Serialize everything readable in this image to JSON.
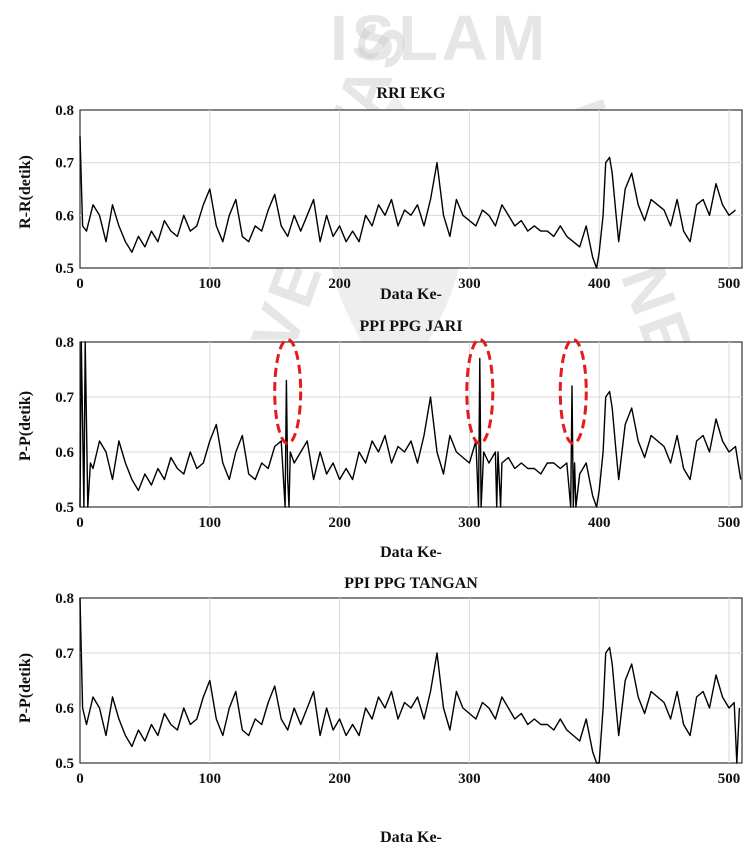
{
  "colors": {
    "series": "#000000",
    "grid": "#d9d9d9",
    "highlight": "#e41a1c",
    "watermark": "#c8c8c8"
  },
  "watermark": {
    "text_top": "ISLAM",
    "text_left": "UNIVERSITAS",
    "text_right": "INDONESIA",
    "emblem": "university-seal-icon"
  },
  "chart_data": [
    {
      "type": "line",
      "title": "RRI EKG",
      "xlabel": "Data Ke-",
      "ylabel": "R-R(detik)",
      "xlim": [
        0,
        510
      ],
      "ylim": [
        0.5,
        0.8
      ],
      "xticks": [
        0,
        100,
        200,
        300,
        400,
        500
      ],
      "yticks": [
        0.5,
        0.6,
        0.7,
        0.8
      ],
      "grid": true,
      "series": [
        {
          "x": [
            0,
            2,
            5,
            10,
            15,
            20,
            25,
            30,
            35,
            40,
            45,
            50,
            55,
            60,
            65,
            70,
            75,
            80,
            85,
            90,
            95,
            100,
            105,
            110,
            115,
            120,
            125,
            130,
            135,
            140,
            145,
            150,
            155,
            160,
            165,
            170,
            175,
            180,
            185,
            190,
            195,
            200,
            205,
            210,
            215,
            220,
            225,
            230,
            235,
            240,
            245,
            250,
            255,
            260,
            265,
            270,
            275,
            280,
            285,
            290,
            295,
            300,
            305,
            310,
            315,
            320,
            325,
            330,
            335,
            340,
            345,
            350,
            355,
            360,
            365,
            370,
            375,
            380,
            385,
            390,
            395,
            398,
            400,
            403,
            405,
            408,
            410,
            413,
            415,
            420,
            425,
            430,
            435,
            440,
            445,
            450,
            455,
            460,
            465,
            470,
            475,
            480,
            485,
            490,
            495,
            500,
            505
          ],
          "y": [
            0.75,
            0.58,
            0.57,
            0.62,
            0.6,
            0.55,
            0.62,
            0.58,
            0.55,
            0.53,
            0.56,
            0.54,
            0.57,
            0.55,
            0.59,
            0.57,
            0.56,
            0.6,
            0.57,
            0.58,
            0.62,
            0.65,
            0.58,
            0.55,
            0.6,
            0.63,
            0.56,
            0.55,
            0.58,
            0.57,
            0.61,
            0.64,
            0.58,
            0.56,
            0.6,
            0.57,
            0.6,
            0.63,
            0.55,
            0.6,
            0.56,
            0.58,
            0.55,
            0.57,
            0.55,
            0.6,
            0.58,
            0.62,
            0.6,
            0.63,
            0.58,
            0.61,
            0.6,
            0.62,
            0.58,
            0.63,
            0.7,
            0.6,
            0.56,
            0.63,
            0.6,
            0.59,
            0.58,
            0.61,
            0.6,
            0.58,
            0.62,
            0.6,
            0.58,
            0.59,
            0.57,
            0.58,
            0.57,
            0.57,
            0.56,
            0.58,
            0.56,
            0.55,
            0.54,
            0.58,
            0.52,
            0.5,
            0.53,
            0.6,
            0.7,
            0.71,
            0.68,
            0.6,
            0.55,
            0.65,
            0.68,
            0.62,
            0.59,
            0.63,
            0.62,
            0.61,
            0.58,
            0.63,
            0.57,
            0.55,
            0.62,
            0.63,
            0.6,
            0.66,
            0.62,
            0.6,
            0.61
          ]
        }
      ]
    },
    {
      "type": "line",
      "title": "PPI PPG JARI",
      "xlabel": "Data Ke-",
      "ylabel": "P-P(detik)",
      "xlim": [
        0,
        510
      ],
      "ylim": [
        0.5,
        0.8
      ],
      "xticks": [
        0,
        100,
        200,
        300,
        400,
        500
      ],
      "yticks": [
        0.5,
        0.6,
        0.7,
        0.8
      ],
      "grid": true,
      "highlight_x": [
        160,
        308,
        380
      ],
      "series": [
        {
          "x": [
            0,
            1,
            3,
            4,
            6,
            8,
            10,
            15,
            20,
            25,
            30,
            35,
            40,
            45,
            50,
            55,
            60,
            65,
            70,
            75,
            80,
            85,
            90,
            95,
            100,
            105,
            110,
            115,
            120,
            125,
            130,
            135,
            140,
            145,
            150,
            155,
            158,
            159,
            160,
            161,
            162,
            165,
            170,
            175,
            180,
            185,
            190,
            195,
            200,
            205,
            210,
            215,
            220,
            225,
            230,
            235,
            240,
            245,
            250,
            255,
            260,
            265,
            270,
            275,
            280,
            285,
            290,
            295,
            300,
            305,
            307,
            308,
            309,
            311,
            315,
            320,
            321,
            322,
            324,
            325,
            330,
            335,
            340,
            345,
            350,
            355,
            360,
            365,
            370,
            375,
            378,
            379,
            380,
            381,
            382,
            385,
            390,
            395,
            398,
            400,
            403,
            405,
            408,
            410,
            413,
            415,
            420,
            425,
            430,
            435,
            440,
            445,
            450,
            455,
            460,
            465,
            470,
            475,
            480,
            485,
            490,
            495,
            500,
            505,
            509
          ],
          "y": [
            0.5,
            0.8,
            0.5,
            0.8,
            0.5,
            0.58,
            0.57,
            0.62,
            0.6,
            0.55,
            0.62,
            0.58,
            0.55,
            0.53,
            0.56,
            0.54,
            0.57,
            0.55,
            0.59,
            0.57,
            0.56,
            0.6,
            0.57,
            0.58,
            0.62,
            0.65,
            0.58,
            0.55,
            0.6,
            0.63,
            0.56,
            0.55,
            0.58,
            0.57,
            0.61,
            0.62,
            0.5,
            0.73,
            0.55,
            0.5,
            0.6,
            0.58,
            0.6,
            0.62,
            0.55,
            0.6,
            0.56,
            0.58,
            0.55,
            0.57,
            0.55,
            0.6,
            0.58,
            0.62,
            0.6,
            0.63,
            0.58,
            0.61,
            0.6,
            0.62,
            0.58,
            0.63,
            0.7,
            0.6,
            0.56,
            0.63,
            0.6,
            0.59,
            0.58,
            0.62,
            0.5,
            0.77,
            0.5,
            0.6,
            0.58,
            0.6,
            0.5,
            0.6,
            0.5,
            0.58,
            0.59,
            0.57,
            0.58,
            0.57,
            0.57,
            0.56,
            0.58,
            0.58,
            0.57,
            0.58,
            0.5,
            0.72,
            0.5,
            0.58,
            0.5,
            0.56,
            0.58,
            0.52,
            0.5,
            0.53,
            0.6,
            0.7,
            0.71,
            0.68,
            0.6,
            0.55,
            0.65,
            0.68,
            0.62,
            0.59,
            0.63,
            0.62,
            0.61,
            0.58,
            0.63,
            0.57,
            0.55,
            0.62,
            0.63,
            0.6,
            0.66,
            0.62,
            0.6,
            0.61,
            0.55
          ]
        }
      ]
    },
    {
      "type": "line",
      "title": "PPI PPG TANGAN",
      "xlabel": "Data Ke-",
      "ylabel": "P-P(detik)",
      "xlim": [
        0,
        510
      ],
      "ylim": [
        0.5,
        0.8
      ],
      "xticks": [
        0,
        100,
        200,
        300,
        400,
        500
      ],
      "yticks": [
        0.5,
        0.6,
        0.7,
        0.8
      ],
      "grid": true,
      "series": [
        {
          "x": [
            0,
            2,
            5,
            10,
            15,
            20,
            25,
            30,
            35,
            40,
            45,
            50,
            55,
            60,
            65,
            70,
            75,
            80,
            85,
            90,
            95,
            100,
            105,
            110,
            115,
            120,
            125,
            130,
            135,
            140,
            145,
            150,
            155,
            160,
            165,
            170,
            175,
            180,
            185,
            190,
            195,
            200,
            205,
            210,
            215,
            220,
            225,
            230,
            235,
            240,
            245,
            250,
            255,
            260,
            265,
            270,
            275,
            280,
            285,
            290,
            295,
            300,
            305,
            310,
            315,
            320,
            325,
            330,
            335,
            340,
            345,
            350,
            355,
            360,
            365,
            370,
            375,
            380,
            385,
            390,
            395,
            398,
            400,
            403,
            405,
            408,
            410,
            413,
            415,
            420,
            425,
            430,
            435,
            440,
            445,
            450,
            455,
            460,
            465,
            470,
            475,
            480,
            485,
            490,
            495,
            500,
            504,
            506,
            508
          ],
          "y": [
            0.8,
            0.6,
            0.57,
            0.62,
            0.6,
            0.55,
            0.62,
            0.58,
            0.55,
            0.53,
            0.56,
            0.54,
            0.57,
            0.55,
            0.59,
            0.57,
            0.56,
            0.6,
            0.57,
            0.58,
            0.62,
            0.65,
            0.58,
            0.55,
            0.6,
            0.63,
            0.56,
            0.55,
            0.58,
            0.57,
            0.61,
            0.64,
            0.58,
            0.56,
            0.6,
            0.57,
            0.6,
            0.63,
            0.55,
            0.6,
            0.56,
            0.58,
            0.55,
            0.57,
            0.55,
            0.6,
            0.58,
            0.62,
            0.6,
            0.63,
            0.58,
            0.61,
            0.6,
            0.62,
            0.58,
            0.63,
            0.7,
            0.6,
            0.56,
            0.63,
            0.6,
            0.59,
            0.58,
            0.61,
            0.6,
            0.58,
            0.62,
            0.6,
            0.58,
            0.59,
            0.57,
            0.58,
            0.57,
            0.57,
            0.56,
            0.58,
            0.56,
            0.55,
            0.54,
            0.58,
            0.52,
            0.5,
            0.5,
            0.6,
            0.7,
            0.71,
            0.68,
            0.6,
            0.55,
            0.65,
            0.68,
            0.62,
            0.59,
            0.63,
            0.62,
            0.61,
            0.58,
            0.63,
            0.57,
            0.55,
            0.62,
            0.63,
            0.6,
            0.66,
            0.62,
            0.6,
            0.61,
            0.5,
            0.6
          ]
        }
      ]
    }
  ]
}
